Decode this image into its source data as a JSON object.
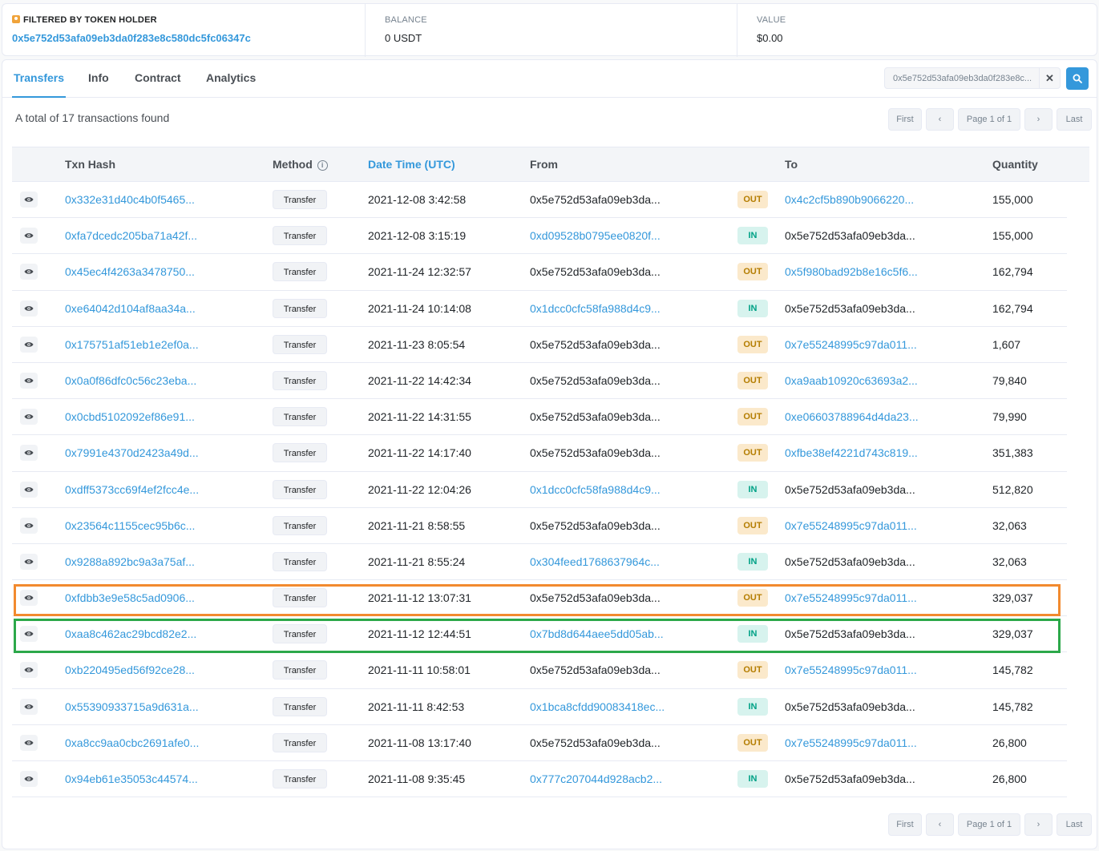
{
  "holder": {
    "label": "FILTERED BY TOKEN HOLDER",
    "address": "0x5e752d53afa09eb3da0f283e8c580dc5fc06347c",
    "balance_label": "BALANCE",
    "balance_value": "0 USDT",
    "value_label": "VALUE",
    "value_value": "$0.00"
  },
  "tabs": [
    "Transfers",
    "Info",
    "Contract",
    "Analytics"
  ],
  "search": {
    "value": "0x5e752d53afa09eb3da0f283e8c..."
  },
  "total_text": "A total of 17 transactions found",
  "pager": {
    "first": "First",
    "page": "Page 1 of 1",
    "last": "Last"
  },
  "columns": {
    "txn_hash": "Txn Hash",
    "method": "Method",
    "date_time": "Date Time (UTC)",
    "from": "From",
    "to": "To",
    "quantity": "Quantity"
  },
  "rows": [
    {
      "hash": "0x332e31d40c4b0f5465...",
      "method": "Transfer",
      "date": "2021-12-08 3:42:58",
      "from": "0x5e752d53afa09eb3da...",
      "from_link": false,
      "dir": "OUT",
      "to": "0x4c2cf5b890b9066220...",
      "to_link": true,
      "qty": "155,000"
    },
    {
      "hash": "0xfa7dcedc205ba71a42f...",
      "method": "Transfer",
      "date": "2021-12-08 3:15:19",
      "from": "0xd09528b0795ee0820f...",
      "from_link": true,
      "dir": "IN",
      "to": "0x5e752d53afa09eb3da...",
      "to_link": false,
      "qty": "155,000"
    },
    {
      "hash": "0x45ec4f4263a3478750...",
      "method": "Transfer",
      "date": "2021-11-24 12:32:57",
      "from": "0x5e752d53afa09eb3da...",
      "from_link": false,
      "dir": "OUT",
      "to": "0x5f980bad92b8e16c5f6...",
      "to_link": true,
      "qty": "162,794"
    },
    {
      "hash": "0xe64042d104af8aa34a...",
      "method": "Transfer",
      "date": "2021-11-24 10:14:08",
      "from": "0x1dcc0cfc58fa988d4c9...",
      "from_link": true,
      "dir": "IN",
      "to": "0x5e752d53afa09eb3da...",
      "to_link": false,
      "qty": "162,794"
    },
    {
      "hash": "0x175751af51eb1e2ef0a...",
      "method": "Transfer",
      "date": "2021-11-23 8:05:54",
      "from": "0x5e752d53afa09eb3da...",
      "from_link": false,
      "dir": "OUT",
      "to": "0x7e55248995c97da011...",
      "to_link": true,
      "qty": "1,607"
    },
    {
      "hash": "0x0a0f86dfc0c56c23eba...",
      "method": "Transfer",
      "date": "2021-11-22 14:42:34",
      "from": "0x5e752d53afa09eb3da...",
      "from_link": false,
      "dir": "OUT",
      "to": "0xa9aab10920c63693a2...",
      "to_link": true,
      "qty": "79,840"
    },
    {
      "hash": "0x0cbd5102092ef86e91...",
      "method": "Transfer",
      "date": "2021-11-22 14:31:55",
      "from": "0x5e752d53afa09eb3da...",
      "from_link": false,
      "dir": "OUT",
      "to": "0xe06603788964d4da23...",
      "to_link": true,
      "qty": "79,990"
    },
    {
      "hash": "0x7991e4370d2423a49d...",
      "method": "Transfer",
      "date": "2021-11-22 14:17:40",
      "from": "0x5e752d53afa09eb3da...",
      "from_link": false,
      "dir": "OUT",
      "to": "0xfbe38ef4221d743c819...",
      "to_link": true,
      "qty": "351,383"
    },
    {
      "hash": "0xdff5373cc69f4ef2fcc4e...",
      "method": "Transfer",
      "date": "2021-11-22 12:04:26",
      "from": "0x1dcc0cfc58fa988d4c9...",
      "from_link": true,
      "dir": "IN",
      "to": "0x5e752d53afa09eb3da...",
      "to_link": false,
      "qty": "512,820"
    },
    {
      "hash": "0x23564c1155cec95b6c...",
      "method": "Transfer",
      "date": "2021-11-21 8:58:55",
      "from": "0x5e752d53afa09eb3da...",
      "from_link": false,
      "dir": "OUT",
      "to": "0x7e55248995c97da011...",
      "to_link": true,
      "qty": "32,063"
    },
    {
      "hash": "0x9288a892bc9a3a75af...",
      "method": "Transfer",
      "date": "2021-11-21 8:55:24",
      "from": "0x304feed1768637964c...",
      "from_link": true,
      "dir": "IN",
      "to": "0x5e752d53afa09eb3da...",
      "to_link": false,
      "qty": "32,063"
    },
    {
      "hash": "0xfdbb3e9e58c5ad0906...",
      "method": "Transfer",
      "date": "2021-11-12 13:07:31",
      "from": "0x5e752d53afa09eb3da...",
      "from_link": false,
      "dir": "OUT",
      "to": "0x7e55248995c97da011...",
      "to_link": true,
      "qty": "329,037"
    },
    {
      "hash": "0xaa8c462ac29bcd82e2...",
      "method": "Transfer",
      "date": "2021-11-12 12:44:51",
      "from": "0x7bd8d644aee5dd05ab...",
      "from_link": true,
      "dir": "IN",
      "to": "0x5e752d53afa09eb3da...",
      "to_link": false,
      "qty": "329,037"
    },
    {
      "hash": "0xb220495ed56f92ce28...",
      "method": "Transfer",
      "date": "2021-11-11 10:58:01",
      "from": "0x5e752d53afa09eb3da...",
      "from_link": false,
      "dir": "OUT",
      "to": "0x7e55248995c97da011...",
      "to_link": true,
      "qty": "145,782"
    },
    {
      "hash": "0x55390933715a9d631a...",
      "method": "Transfer",
      "date": "2021-11-11 8:42:53",
      "from": "0x1bca8cfdd90083418ec...",
      "from_link": true,
      "dir": "IN",
      "to": "0x5e752d53afa09eb3da...",
      "to_link": false,
      "qty": "145,782"
    },
    {
      "hash": "0xa8cc9aa0cbc2691afe0...",
      "method": "Transfer",
      "date": "2021-11-08 13:17:40",
      "from": "0x5e752d53afa09eb3da...",
      "from_link": false,
      "dir": "OUT",
      "to": "0x7e55248995c97da011...",
      "to_link": true,
      "qty": "26,800"
    },
    {
      "hash": "0x94eb61e35053c44574...",
      "method": "Transfer",
      "date": "2021-11-08 9:35:45",
      "from": "0x777c207044d928acb2...",
      "from_link": true,
      "dir": "IN",
      "to": "0x5e752d53afa09eb3da...",
      "to_link": false,
      "qty": "26,800"
    }
  ],
  "highlight_colors": {
    "orange": "#f28a2e",
    "green": "#2ca84a"
  }
}
